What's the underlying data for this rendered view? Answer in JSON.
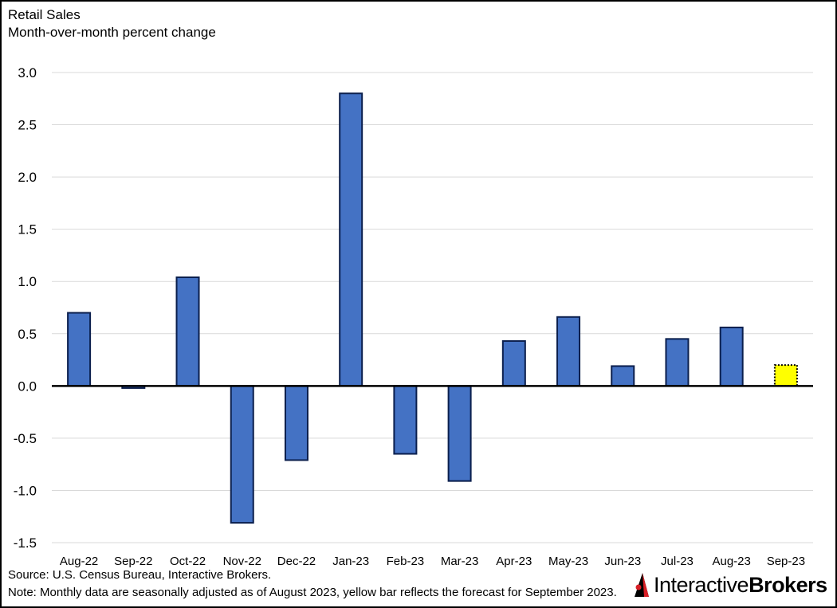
{
  "chart_data": {
    "type": "bar",
    "title": "Retail Sales",
    "subtitle": "Month-over-month percent change",
    "categories": [
      "Aug-22",
      "Sep-22",
      "Oct-22",
      "Nov-22",
      "Dec-22",
      "Jan-23",
      "Feb-23",
      "Mar-23",
      "Apr-23",
      "May-23",
      "Jun-23",
      "Jul-23",
      "Aug-23",
      "Sep-23"
    ],
    "values": [
      0.7,
      -0.02,
      1.04,
      -1.31,
      -0.71,
      2.8,
      -0.65,
      -0.91,
      0.43,
      0.66,
      0.19,
      0.45,
      0.56,
      0.2
    ],
    "forecast_index": 13,
    "ylim": [
      -1.5,
      3.0
    ],
    "yticks": [
      3.0,
      2.5,
      2.0,
      1.5,
      1.0,
      0.5,
      0.0,
      -0.5,
      -1.0,
      -1.5
    ],
    "ytick_labels": [
      "3.0",
      "2.5",
      "2.0",
      "1.5",
      "1.0",
      "0.5",
      "0.0",
      "-0.5",
      "-1.0",
      "-1.5"
    ],
    "grid": true,
    "colors": {
      "bar": "#4472c4",
      "bar_edge": "#0b1f4d",
      "forecast": "#ffff00",
      "grid": "#d9d9d9"
    }
  },
  "notes": {
    "source": "Source: U.S. Census Bureau, Interactive Brokers.",
    "note": "Note: Monthly data are seasonally adjusted as of August 2023, yellow bar reflects the forecast for September 2023."
  },
  "logo": {
    "part1": "Interactive",
    "part2": "Brokers",
    "accent": "#d81f26"
  }
}
